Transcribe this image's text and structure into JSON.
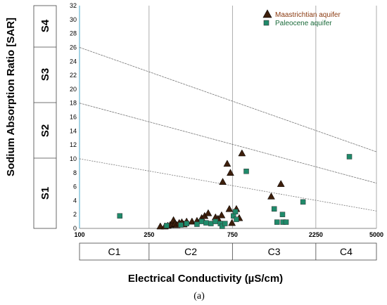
{
  "chart_data": {
    "type": "scatter",
    "xlabel": "Electrical Conductivity (µS/cm)",
    "ylabel": "Sodium Absorption Ratio [SAR]",
    "panel_label": "(a)",
    "x_scale": "log",
    "xlim": [
      100,
      5000
    ],
    "ylim": [
      0,
      32
    ],
    "x_ticks": [
      "100",
      "250",
      "750",
      "2250",
      "5000"
    ],
    "y_ticks": [
      "0",
      "2",
      "4",
      "6",
      "8",
      "10",
      "12",
      "14",
      "16",
      "18",
      "20",
      "22",
      "24",
      "26",
      "28",
      "30",
      "32"
    ],
    "salinity_classes": [
      {
        "label": "C1",
        "from": 100,
        "to": 250
      },
      {
        "label": "C2",
        "from": 250,
        "to": 750
      },
      {
        "label": "C3",
        "from": 750,
        "to": 2250
      },
      {
        "label": "C4",
        "from": 2250,
        "to": 5000
      }
    ],
    "sodium_classes": [
      "S1",
      "S2",
      "S3",
      "S4"
    ],
    "boundary_lines": [
      {
        "x": [
          100,
          5000
        ],
        "y": [
          26,
          11
        ]
      },
      {
        "x": [
          100,
          5000
        ],
        "y": [
          18,
          6.5
        ]
      },
      {
        "x": [
          100,
          5000
        ],
        "y": [
          10,
          2.5
        ]
      }
    ],
    "legend_position": "top-right",
    "series": [
      {
        "name": "Maastrichtian aquifer",
        "marker": "triangle",
        "color": "#3d1f0c",
        "points": [
          [
            290,
            0.3
          ],
          [
            308,
            0.3
          ],
          [
            320,
            0.4
          ],
          [
            330,
            0.5
          ],
          [
            340,
            0.6
          ],
          [
            345,
            1.2
          ],
          [
            352,
            0.7
          ],
          [
            360,
            0.5
          ],
          [
            372,
            0.8
          ],
          [
            385,
            0.9
          ],
          [
            395,
            0.6
          ],
          [
            410,
            1.0
          ],
          [
            440,
            1.0
          ],
          [
            470,
            1.1
          ],
          [
            500,
            1.5
          ],
          [
            520,
            1.8
          ],
          [
            545,
            2.2
          ],
          [
            600,
            1.6
          ],
          [
            620,
            1.4
          ],
          [
            650,
            1.9
          ],
          [
            660,
            6.7
          ],
          [
            700,
            9.3
          ],
          [
            730,
            8.0
          ],
          [
            720,
            2.8
          ],
          [
            745,
            0.8
          ],
          [
            790,
            2.8
          ],
          [
            820,
            1.5
          ],
          [
            850,
            10.8
          ],
          [
            1250,
            4.6
          ],
          [
            1420,
            6.4
          ]
        ]
      },
      {
        "name": "Paleocene aquifer",
        "marker": "square",
        "color": "#1f8a6a",
        "points": [
          [
            170,
            1.8
          ],
          [
            315,
            0.4
          ],
          [
            380,
            0.5
          ],
          [
            410,
            0.7
          ],
          [
            470,
            0.6
          ],
          [
            500,
            1.0
          ],
          [
            530,
            0.8
          ],
          [
            565,
            0.7
          ],
          [
            600,
            1.0
          ],
          [
            640,
            0.7
          ],
          [
            655,
            0.3
          ],
          [
            680,
            0.7
          ],
          [
            760,
            1.8
          ],
          [
            780,
            2.4
          ],
          [
            790,
            1.3
          ],
          [
            900,
            8.2
          ],
          [
            1300,
            2.8
          ],
          [
            1350,
            0.9
          ],
          [
            1450,
            2.0
          ],
          [
            1460,
            0.9
          ],
          [
            1520,
            0.9
          ],
          [
            1900,
            3.8
          ],
          [
            3500,
            10.3
          ]
        ]
      }
    ]
  }
}
